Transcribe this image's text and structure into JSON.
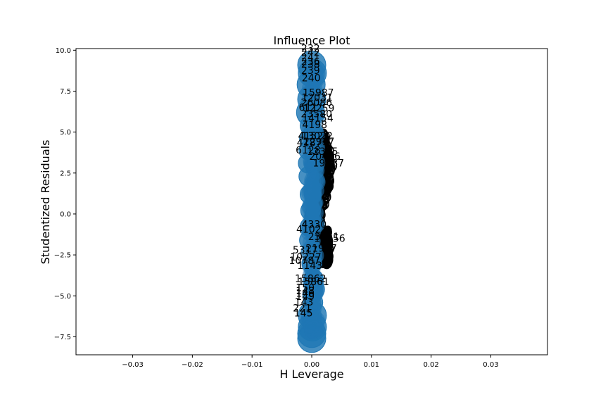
{
  "chart_data": {
    "type": "scatter",
    "title": "Influence Plot",
    "xlabel": "H Leverage",
    "ylabel": "Studentized Residuals",
    "xlim": [
      -0.0395,
      0.0395
    ],
    "ylim": [
      -8.6,
      10.1
    ],
    "xticks": [
      -0.03,
      -0.02,
      -0.01,
      0.0,
      0.01,
      0.02,
      0.03
    ],
    "xtick_labels": [
      "−0.03",
      "−0.02",
      "−0.01",
      "0.00",
      "0.01",
      "0.02",
      "0.03"
    ],
    "yticks": [
      -7.5,
      -5.0,
      -2.5,
      0.0,
      2.5,
      5.0,
      7.5,
      10.0
    ],
    "ytick_labels": [
      "−7.5",
      "−5.0",
      "−2.5",
      "0.0",
      "2.5",
      "5.0",
      "7.5",
      "10.0"
    ],
    "grid": false,
    "legend": "none",
    "point_color": "#1f77b4",
    "large_points": [
      {
        "x": 0.0,
        "y": 9.1
      },
      {
        "x": 0.0001,
        "y": 8.6
      },
      {
        "x": -0.0001,
        "y": 7.9
      },
      {
        "x": 0.0,
        "y": 7.0
      },
      {
        "x": -0.0002,
        "y": 6.2
      },
      {
        "x": -0.0003,
        "y": 5.4
      },
      {
        "x": -0.0004,
        "y": 4.6
      },
      {
        "x": -0.0005,
        "y": 3.9
      },
      {
        "x": -0.0006,
        "y": 3.1
      },
      {
        "x": -0.0005,
        "y": 2.3
      },
      {
        "x": -0.0003,
        "y": 1.2
      },
      {
        "x": -0.0002,
        "y": 0.2
      },
      {
        "x": -0.0003,
        "y": -0.8
      },
      {
        "x": -0.0004,
        "y": -1.6
      },
      {
        "x": 0.0,
        "y": -3.0
      },
      {
        "x": 0.0003,
        "y": -4.0
      },
      {
        "x": 0.0005,
        "y": -4.6
      },
      {
        "x": 0.0002,
        "y": -5.4
      },
      {
        "x": 0.0001,
        "y": -6.2
      },
      {
        "x": 0.0001,
        "y": -6.9
      },
      {
        "x": 0.0,
        "y": -7.3
      },
      {
        "x": 0.0,
        "y": -7.6
      }
    ],
    "labeled_points": [
      {
        "x": -0.0002,
        "y": 9.9,
        "label": "232"
      },
      {
        "x": -0.0002,
        "y": 9.65,
        "label": "242"
      },
      {
        "x": -0.0002,
        "y": 9.35,
        "label": "241"
      },
      {
        "x": -0.0002,
        "y": 9.1,
        "label": "236"
      },
      {
        "x": -0.0002,
        "y": 8.95,
        "label": "238"
      },
      {
        "x": -0.0002,
        "y": 8.55,
        "label": "239"
      },
      {
        "x": -0.0001,
        "y": 8.1,
        "label": "240"
      },
      {
        "x": 0.0011,
        "y": 7.2,
        "label": "15987"
      },
      {
        "x": 0.0009,
        "y": 6.9,
        "label": "12031"
      },
      {
        "x": 0.0008,
        "y": 6.6,
        "label": "26086"
      },
      {
        "x": -0.0006,
        "y": 6.3,
        "label": "611"
      },
      {
        "x": 0.0012,
        "y": 6.25,
        "label": "12259"
      },
      {
        "x": 0.0008,
        "y": 5.9,
        "label": "23580"
      },
      {
        "x": 0.001,
        "y": 5.65,
        "label": "14154"
      },
      {
        "x": 0.0005,
        "y": 5.25,
        "label": "4198"
      },
      {
        "x": -0.0002,
        "y": 4.55,
        "label": "4152"
      },
      {
        "x": 0.0009,
        "y": 4.55,
        "label": "13022"
      },
      {
        "x": -0.0004,
        "y": 4.15,
        "label": "4187"
      },
      {
        "x": 0.0012,
        "y": 4.2,
        "label": "22917"
      },
      {
        "x": -0.0006,
        "y": 3.7,
        "label": "6128"
      },
      {
        "x": 0.0018,
        "y": 3.6,
        "label": "12345"
      },
      {
        "x": 0.0022,
        "y": 3.3,
        "label": "20456"
      },
      {
        "x": 0.0028,
        "y": 2.9,
        "label": "19087"
      },
      {
        "x": -0.0005,
        "y": -1.15,
        "label": "4102"
      },
      {
        "x": 0.0004,
        "y": -0.85,
        "label": "4330"
      },
      {
        "x": 0.002,
        "y": -1.6,
        "label": "23111"
      },
      {
        "x": 0.003,
        "y": -1.7,
        "label": "18456"
      },
      {
        "x": -0.0011,
        "y": -2.4,
        "label": "5317"
      },
      {
        "x": 0.0016,
        "y": -2.3,
        "label": "21987"
      },
      {
        "x": -0.001,
        "y": -2.85,
        "label": "10227"
      },
      {
        "x": -0.0012,
        "y": -3.05,
        "label": "10787"
      },
      {
        "x": 0.0002,
        "y": -3.35,
        "label": "11430"
      },
      {
        "x": -0.0002,
        "y": -4.15,
        "label": "15862"
      },
      {
        "x": 0.0003,
        "y": -4.35,
        "label": "15861"
      },
      {
        "x": -0.0011,
        "y": -4.7,
        "label": "150"
      },
      {
        "x": -0.0011,
        "y": -4.9,
        "label": "148"
      },
      {
        "x": -0.0011,
        "y": -5.05,
        "label": "146"
      },
      {
        "x": -0.0011,
        "y": -5.25,
        "label": "149"
      },
      {
        "x": -0.0013,
        "y": -5.6,
        "label": "143"
      },
      {
        "x": -0.0016,
        "y": -5.95,
        "label": "221"
      },
      {
        "x": -0.0014,
        "y": -6.25,
        "label": "145"
      }
    ]
  }
}
